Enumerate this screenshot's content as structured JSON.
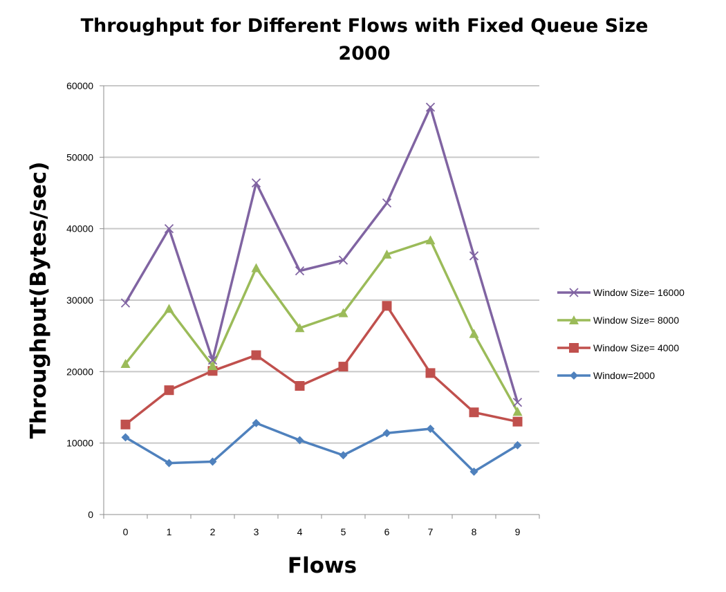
{
  "chart_data": {
    "type": "line",
    "title_line1": "Throughput for Different Flows with Fixed Queue Size",
    "title_line2": "2000",
    "xlabel": "Flows",
    "ylabel": "Throughput(Bytes/sec)",
    "x": [
      0,
      1,
      2,
      3,
      4,
      5,
      6,
      7,
      8,
      9
    ],
    "ylim": [
      0,
      60000
    ],
    "yticks": [
      0,
      10000,
      20000,
      30000,
      40000,
      50000,
      60000
    ],
    "grid": true,
    "legend_position": "right",
    "series": [
      {
        "name": "Window Size= 16000",
        "color": "#8064A2",
        "marker": "x",
        "values": [
          29600,
          40000,
          21600,
          46400,
          34100,
          35600,
          43600,
          57000,
          36200,
          15700
        ]
      },
      {
        "name": "Window Size= 8000",
        "color": "#9BBB59",
        "marker": "triangle",
        "values": [
          21100,
          28800,
          20800,
          34500,
          26100,
          28200,
          36400,
          38400,
          25300,
          14400
        ]
      },
      {
        "name": "Window Size= 4000",
        "color": "#C0504D",
        "marker": "square",
        "values": [
          12600,
          17400,
          20100,
          22300,
          18000,
          20700,
          29200,
          19800,
          14300,
          13000
        ]
      },
      {
        "name": "Window=2000",
        "color": "#4F81BD",
        "marker": "diamond",
        "values": [
          10800,
          7200,
          7400,
          12800,
          10400,
          8300,
          11400,
          12000,
          6000,
          9700
        ]
      }
    ]
  }
}
